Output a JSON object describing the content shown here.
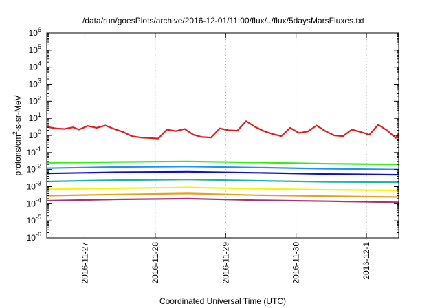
{
  "chart_data": {
    "type": "line",
    "title": "/data/run/goesPlots/archive/2016-12-01/11:00/flux/../flux/5daysMarsFluxes.txt",
    "xlabel": "Coordinated Universal Time (UTC)",
    "ylabel_parts": {
      "pre": "protons/cm",
      "sup": "2",
      "post": "-s-sr-MeV"
    },
    "yscale": "log",
    "ylim": [
      1e-06,
      1000000.0
    ],
    "y_ticks": [
      {
        "base": "10",
        "exp": "-6",
        "value": 1e-06
      },
      {
        "base": "10",
        "exp": "-5",
        "value": 1e-05
      },
      {
        "base": "10",
        "exp": "-4",
        "value": 0.0001
      },
      {
        "base": "10",
        "exp": "-3",
        "value": 0.001
      },
      {
        "base": "10",
        "exp": "-2",
        "value": 0.01
      },
      {
        "base": "10",
        "exp": "-1",
        "value": 0.1
      },
      {
        "base": "10",
        "exp": "0",
        "value": 1
      },
      {
        "base": "10",
        "exp": "1",
        "value": 10
      },
      {
        "base": "10",
        "exp": "2",
        "value": 100
      },
      {
        "base": "10",
        "exp": "3",
        "value": 1000
      },
      {
        "base": "10",
        "exp": "4",
        "value": 10000
      },
      {
        "base": "10",
        "exp": "5",
        "value": 100000
      },
      {
        "base": "10",
        "exp": "6",
        "value": 1000000
      }
    ],
    "xlim": [
      "2016-11-26T11:00",
      "2016-12-01T11:00"
    ],
    "x_ticks": [
      {
        "label": "2016-11-27",
        "value": "2016-11-27T00:00"
      },
      {
        "label": "2016-11-28",
        "value": "2016-11-28T00:00"
      },
      {
        "label": "2016-11-29",
        "value": "2016-11-29T00:00"
      },
      {
        "label": "2016-11-30",
        "value": "2016-11-30T00:00"
      },
      {
        "label": "2016-12-1",
        "value": "2016-12-01T00:00"
      }
    ],
    "grid": true,
    "series": [
      {
        "color": "#e41a1c",
        "x": [
          "2016-11-26T11:00",
          "2016-11-26T14:00",
          "2016-11-26T17:00",
          "2016-11-26T20:00",
          "2016-11-26T22:00",
          "2016-11-27T01:00",
          "2016-11-27T04:00",
          "2016-11-27T07:00",
          "2016-11-27T10:00",
          "2016-11-27T13:00",
          "2016-11-27T16:00",
          "2016-11-27T19:00",
          "2016-11-27T22:00",
          "2016-11-28T01:00",
          "2016-11-28T04:00",
          "2016-11-28T07:00",
          "2016-11-28T10:00",
          "2016-11-28T13:00",
          "2016-11-28T16:00",
          "2016-11-28T19:00",
          "2016-11-28T22:00",
          "2016-11-29T01:00",
          "2016-11-29T04:00",
          "2016-11-29T07:00",
          "2016-11-29T10:00",
          "2016-11-29T13:00",
          "2016-11-29T16:00",
          "2016-11-29T19:00",
          "2016-11-29T22:00",
          "2016-11-30T01:00",
          "2016-11-30T04:00",
          "2016-11-30T07:00",
          "2016-11-30T10:00",
          "2016-11-30T13:00",
          "2016-11-30T16:00",
          "2016-11-30T19:00",
          "2016-11-30T22:00",
          "2016-12-01T01:00",
          "2016-12-01T04:00",
          "2016-12-01T07:00",
          "2016-12-01T10:00",
          "2016-12-01T11:00"
        ],
        "values": [
          3.2,
          2.6,
          2.4,
          3.0,
          2.2,
          3.6,
          2.8,
          3.8,
          2.4,
          1.6,
          0.9,
          0.75,
          0.7,
          0.65,
          2.2,
          1.8,
          2.4,
          1.1,
          0.8,
          0.75,
          2.6,
          2.0,
          1.9,
          6.8,
          3.2,
          1.8,
          1.2,
          0.9,
          2.8,
          1.4,
          1.7,
          3.8,
          1.8,
          1.0,
          0.9,
          2.2,
          1.6,
          1.1,
          4.2,
          2.0,
          0.7,
          1.4
        ]
      },
      {
        "color": "#33ee11",
        "x": [
          "2016-11-26T11:00",
          "2016-11-27T11:00",
          "2016-11-28T11:00",
          "2016-11-29T11:00",
          "2016-11-30T11:00",
          "2016-12-01T11:00"
        ],
        "values": [
          0.025,
          0.028,
          0.03,
          0.026,
          0.022,
          0.02
        ]
      },
      {
        "color": "#1e90ff",
        "x": [
          "2016-11-26T11:00",
          "2016-11-27T11:00",
          "2016-11-28T11:00",
          "2016-11-29T11:00",
          "2016-11-30T11:00",
          "2016-12-01T11:00"
        ],
        "values": [
          0.012,
          0.014,
          0.015,
          0.013,
          0.011,
          0.01
        ]
      },
      {
        "color": "#1010cc",
        "x": [
          "2016-11-26T11:00",
          "2016-11-27T11:00",
          "2016-11-28T11:00",
          "2016-11-29T11:00",
          "2016-11-30T11:00",
          "2016-12-01T11:00"
        ],
        "values": [
          0.006,
          0.007,
          0.0075,
          0.0065,
          0.0055,
          0.005
        ]
      },
      {
        "color": "#20b2aa",
        "x": [
          "2016-11-26T11:00",
          "2016-11-27T11:00",
          "2016-11-28T11:00",
          "2016-11-29T11:00",
          "2016-11-30T11:00",
          "2016-12-01T11:00"
        ],
        "values": [
          0.002,
          0.0024,
          0.0026,
          0.0022,
          0.0019,
          0.0018
        ]
      },
      {
        "color": "#f5f500",
        "x": [
          "2016-11-26T11:00",
          "2016-11-27T11:00",
          "2016-11-28T11:00",
          "2016-11-29T11:00",
          "2016-11-30T11:00",
          "2016-12-01T11:00"
        ],
        "values": [
          0.0007,
          0.0008,
          0.0009,
          0.00075,
          0.00065,
          0.0006
        ]
      },
      {
        "color": "#e8a020",
        "x": [
          "2016-11-26T11:00",
          "2016-11-27T11:00",
          "2016-11-28T11:00",
          "2016-11-29T11:00",
          "2016-11-30T11:00",
          "2016-12-01T11:00"
        ],
        "values": [
          0.0003,
          0.00035,
          0.0004,
          0.00032,
          0.00028,
          0.00025
        ]
      },
      {
        "color": "#aa3377",
        "x": [
          "2016-11-26T11:00",
          "2016-11-27T11:00",
          "2016-11-28T11:00",
          "2016-11-29T11:00",
          "2016-11-30T11:00",
          "2016-12-01T11:00"
        ],
        "values": [
          0.00015,
          0.00018,
          0.0002,
          0.00016,
          0.00014,
          0.00012
        ]
      }
    ]
  }
}
